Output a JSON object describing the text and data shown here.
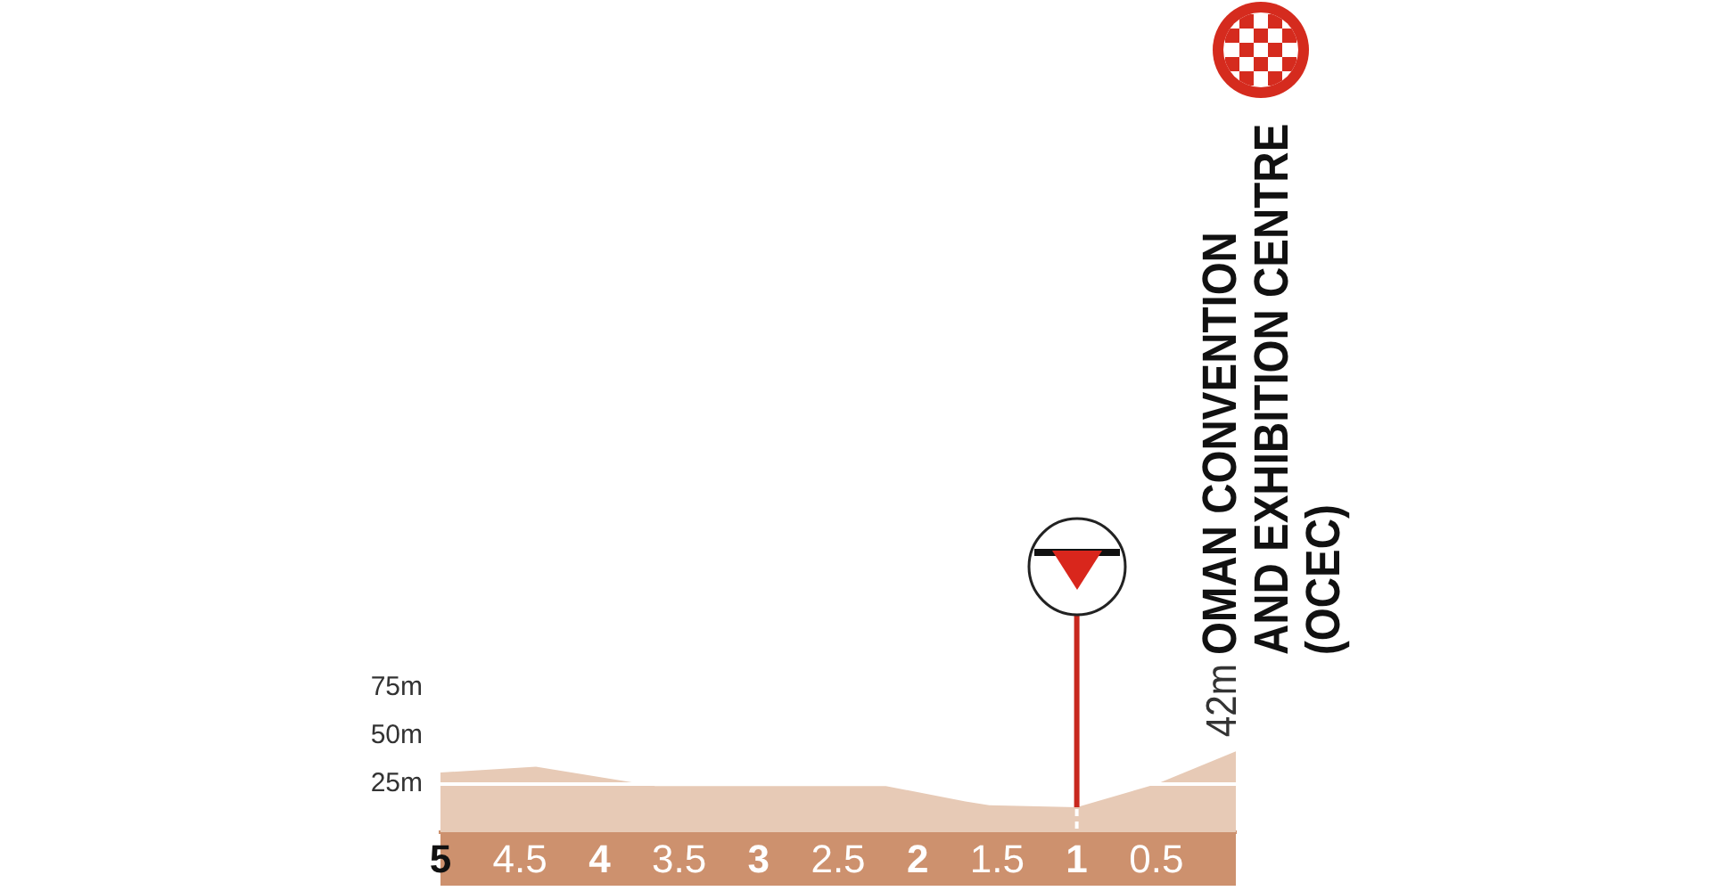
{
  "chart_data": {
    "type": "area",
    "x": [
      5,
      4.4,
      3.65,
      2.2,
      1.7,
      1.55,
      1,
      0.5,
      0
    ],
    "values": [
      31,
      34,
      24,
      24,
      16,
      14,
      13,
      25,
      42
    ],
    "color": "#e7cab6",
    "xlim": [
      5,
      0
    ],
    "xticks": [
      5,
      4.5,
      4,
      3.5,
      3,
      2.5,
      2,
      1.5,
      1,
      0.5
    ],
    "ylim": [
      0,
      75
    ],
    "yticks": [
      {
        "value": 25,
        "label": "25m"
      },
      {
        "value": 50,
        "label": "50m"
      },
      {
        "value": 75,
        "label": "75m"
      }
    ],
    "marker": "none",
    "ref_lines": [
      {
        "axis": "y",
        "value": 25,
        "color": "#ffffff"
      },
      {
        "axis": "x",
        "value": 1,
        "color": "#c8281e"
      }
    ],
    "annotations": [
      {
        "text": "42m",
        "x": 0,
        "y": 42
      },
      "OMAN CONVENTION\nAND EXHIBITION CENTRE\n(OCEC)"
    ]
  }
}
